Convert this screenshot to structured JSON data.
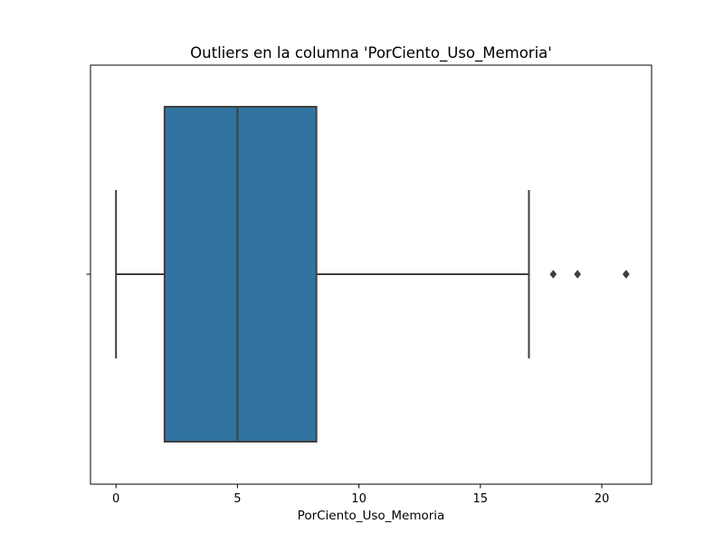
{
  "chart_data": {
    "type": "box",
    "title": "Outliers en la columna 'PorCiento_Uso_Memoria'",
    "xlabel": "PorCiento_Uso_Memoria",
    "ylabel": "",
    "xlim": [
      -1.05,
      22.05
    ],
    "xticks": [
      0,
      5,
      10,
      15,
      20
    ],
    "xtick_labels": [
      "0",
      "5",
      "10",
      "15",
      "20"
    ],
    "grid": false,
    "box": {
      "whisker_low": 0,
      "q1": 2,
      "median": 5,
      "q3": 8.25,
      "whisker_high": 17
    },
    "outliers": [
      18,
      19,
      21,
      21
    ],
    "colors": {
      "box_fill": "#3274a1",
      "lines": "#3f3f3f"
    }
  }
}
